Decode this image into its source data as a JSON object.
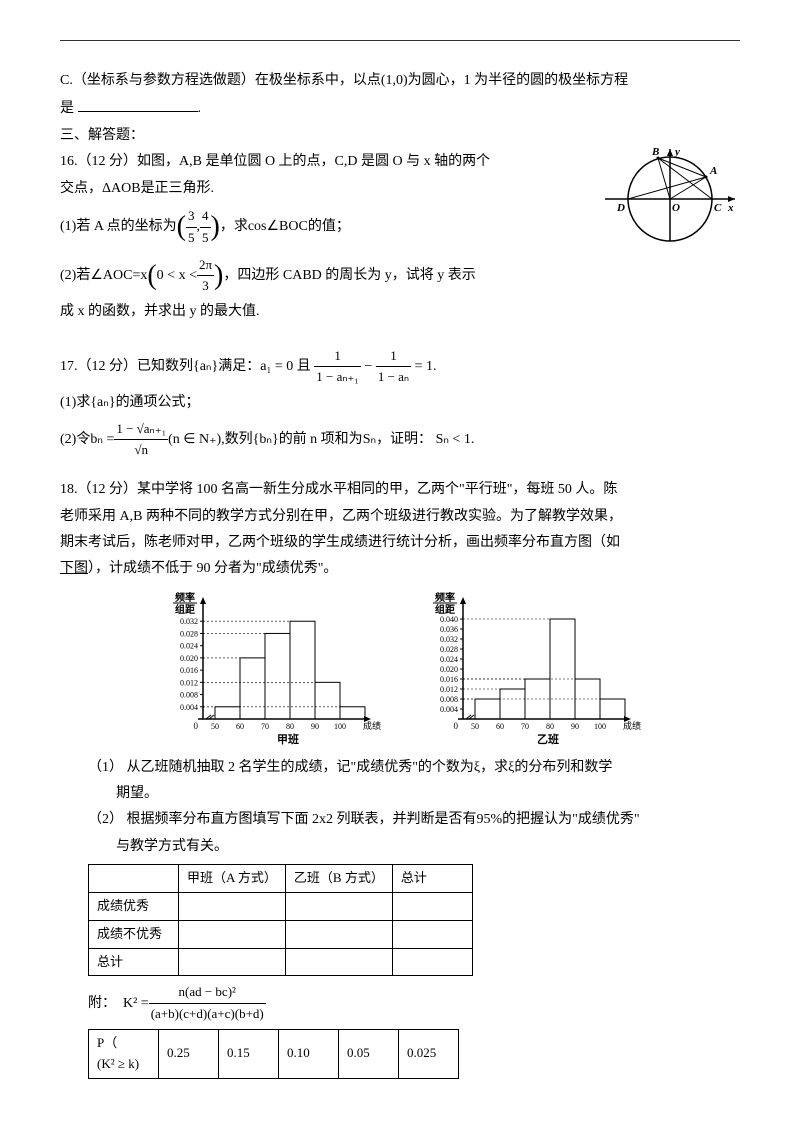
{
  "q15c": {
    "text_pre": "C.（坐标系与参数方程选做题）在极坐标系中，以点",
    "point": "(1,0)",
    "text_mid": "为圆心，1 为半径的圆的极坐标方程",
    "text_line2": "是",
    "period": "."
  },
  "section3": "三、解答题：",
  "q16": {
    "header": "16.（12 分）如图，A,B 是单位圆 O 上的点，C,D 是圆 O 与 x 轴的两个",
    "header2": "交点，",
    "triangle": "ΔAOB",
    "header3": "是正三角形.",
    "p1_pre": "(1)若 A 点的坐标为",
    "p1_frac_num1": "3",
    "p1_frac_den1": "5",
    "p1_comma": ",",
    "p1_frac_num2": "4",
    "p1_frac_den2": "5",
    "p1_mid": "，求",
    "p1_cos": "cos∠BOC",
    "p1_end": "的值；",
    "p2_pre": "(2)若",
    "p2_angle": "∠AOC",
    "p2_eq": "=x",
    "p2_range_pre": "0 < x <",
    "p2_range_num": "2π",
    "p2_range_den": "3",
    "p2_mid": "，四边形 CABD 的周长为 y，试将 y 表示",
    "p2_line2": "成 x 的函数，并求出 y 的最大值."
  },
  "diagram16": {
    "labels": {
      "B": "B",
      "A": "A",
      "D": "D",
      "O": "O",
      "C": "C",
      "x": "x",
      "y": "y"
    }
  },
  "q17": {
    "header_pre": "17.（12 分）已知数列",
    "seq": "{aₙ}",
    "header_mid": "满足：",
    "a1": "a₁ = 0",
    "and": "且",
    "frac1_num": "1",
    "frac1_den": "1 − aₙ₊₁",
    "minus": "−",
    "frac2_num": "1",
    "frac2_den": "1 − aₙ",
    "eq1": "= 1.",
    "p1": "(1)求",
    "p1_seq": "{aₙ}",
    "p1_end": "的通项公式；",
    "p2_pre": "(2)令",
    "bn": "bₙ =",
    "bfrac_num": "1 − √aₙ₊₁",
    "bfrac_den": "√n",
    "bcond": "(n ∈ N₊),",
    "p2_mid": "数列",
    "bseq": "{bₙ}",
    "p2_mid2": "的前 n 项和为",
    "sn": "Sₙ",
    "p2_end": "，证明：",
    "sn_ineq": "Sₙ < 1."
  },
  "q18": {
    "line1": "18.（12 分）某中学将 100 名高一新生分成水平相同的甲，乙两个\"平行班\"，每班 50 人。陈",
    "line2": "老师采用 A,B 两种不同的教学方式分别在甲，乙两个班级进行教改实验。为了解教学效果，",
    "line3": "期末考试后，陈老师对甲，乙两个班级的学生成绩进行统计分析，画出频率分布直方图（如",
    "line4_pre": "下图",
    "line4_post": "），计成绩不低于 90 分者为\"成绩优秀\"。",
    "hist": {
      "ylabel_top": "频率",
      "ylabel_bot": "组距",
      "xlabel": "成绩（分",
      "xlabel_jia": "甲班",
      "xlabel_yi": "乙班",
      "jia_y": [
        "0.032",
        "0.028",
        "0.024",
        "0.020",
        "0.016",
        "0.012",
        "0.008",
        "0.004"
      ],
      "yi_y": [
        "0.040",
        "0.036",
        "0.032",
        "0.028",
        "0.024",
        "0.020",
        "0.016",
        "0.012",
        "0.008",
        "0.004"
      ],
      "x_ticks": [
        "50",
        "60",
        "70",
        "80",
        "90",
        "100"
      ],
      "jia_bars": [
        0.004,
        0.02,
        0.028,
        0.032,
        0.012,
        0.004
      ],
      "yi_bars": [
        0.008,
        0.012,
        0.016,
        0.04,
        0.016,
        0.008
      ],
      "bar_color": "#ffffff",
      "line_color": "#000000"
    },
    "p1": "（1）  从乙班随机抽取 2 名学生的成绩，记\"成绩优秀\"的个数为ξ，求ξ的分布列和数学",
    "p1_b": "期望。",
    "p2": "（2）  根据频率分布直方图填写下面 2x2 列联表，并判断是否有",
    "p2_pct": "95%",
    "p2_end": "的把握认为\"成绩优秀\"",
    "p2_b": "与教学方式有关。",
    "table": {
      "headers": [
        "",
        "甲班（A 方式）",
        "乙班（B 方式）",
        "总计"
      ],
      "rows": [
        "成绩优秀",
        "成绩不优秀",
        "总计"
      ]
    },
    "k2": {
      "label": "附：",
      "k": "K² =",
      "num": "n(ad − bc)²",
      "den": "(a+b)(c+d)(a+c)(b+d)"
    },
    "ktable": {
      "r1_label_a": "P（",
      "r1_label_b": "(K² ≥ k)",
      "vals": [
        "0.25",
        "0.15",
        "0.10",
        "0.05",
        "0.025"
      ]
    }
  }
}
